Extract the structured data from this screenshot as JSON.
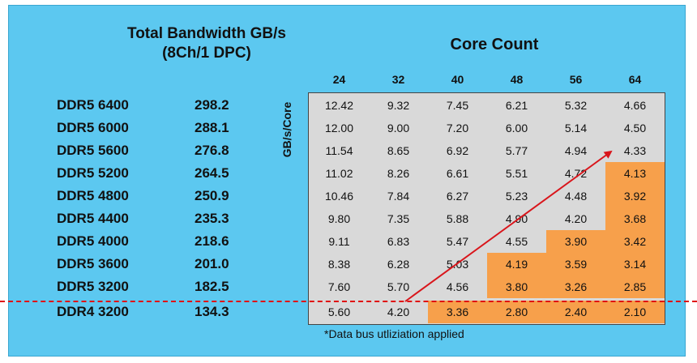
{
  "chart_data": {
    "type": "table",
    "title": "Total Bandwidth GB/s",
    "subtitle": "(8Ch/1 DPC)",
    "column_group_label": "Core Count",
    "ylabel": "GB/s/Core",
    "footnote": "*Data bus utliziation applied",
    "columns": [
      "24",
      "32",
      "40",
      "48",
      "56",
      "64"
    ],
    "highlight_color": "#f7a04b",
    "rows": [
      {
        "name": "DDR5 6400",
        "bandwidth": "298.2",
        "values": [
          "12.42",
          "9.32",
          "7.45",
          "6.21",
          "5.32",
          "4.66"
        ],
        "highlight": [
          false,
          false,
          false,
          false,
          false,
          false
        ]
      },
      {
        "name": "DDR5 6000",
        "bandwidth": "288.1",
        "values": [
          "12.00",
          "9.00",
          "7.20",
          "6.00",
          "5.14",
          "4.50"
        ],
        "highlight": [
          false,
          false,
          false,
          false,
          false,
          false
        ]
      },
      {
        "name": "DDR5 5600",
        "bandwidth": "276.8",
        "values": [
          "11.54",
          "8.65",
          "6.92",
          "5.77",
          "4.94",
          "4.33"
        ],
        "highlight": [
          false,
          false,
          false,
          false,
          false,
          false
        ]
      },
      {
        "name": "DDR5 5200",
        "bandwidth": "264.5",
        "values": [
          "11.02",
          "8.26",
          "6.61",
          "5.51",
          "4.72",
          "4.13"
        ],
        "highlight": [
          false,
          false,
          false,
          false,
          false,
          true
        ]
      },
      {
        "name": "DDR5 4800",
        "bandwidth": "250.9",
        "values": [
          "10.46",
          "7.84",
          "6.27",
          "5.23",
          "4.48",
          "3.92"
        ],
        "highlight": [
          false,
          false,
          false,
          false,
          false,
          true
        ]
      },
      {
        "name": "DDR5 4400",
        "bandwidth": "235.3",
        "values": [
          "9.80",
          "7.35",
          "5.88",
          "4.90",
          "4.20",
          "3.68"
        ],
        "highlight": [
          false,
          false,
          false,
          false,
          false,
          true
        ]
      },
      {
        "name": "DDR5 4000",
        "bandwidth": "218.6",
        "values": [
          "9.11",
          "6.83",
          "5.47",
          "4.55",
          "3.90",
          "3.42"
        ],
        "highlight": [
          false,
          false,
          false,
          false,
          true,
          true
        ]
      },
      {
        "name": "DDR5 3600",
        "bandwidth": "201.0",
        "values": [
          "8.38",
          "6.28",
          "5.03",
          "4.19",
          "3.59",
          "3.14"
        ],
        "highlight": [
          false,
          false,
          false,
          true,
          true,
          true
        ]
      },
      {
        "name": "DDR5 3200",
        "bandwidth": "182.5",
        "values": [
          "7.60",
          "5.70",
          "4.56",
          "3.80",
          "3.26",
          "2.85"
        ],
        "highlight": [
          false,
          false,
          false,
          true,
          true,
          true
        ]
      },
      {
        "name": "DDR4 3200",
        "bandwidth": "134.3",
        "values": [
          "5.60",
          "4.20",
          "3.36",
          "2.80",
          "2.40",
          "2.10"
        ],
        "highlight": [
          false,
          false,
          true,
          true,
          true,
          true
        ]
      }
    ]
  }
}
